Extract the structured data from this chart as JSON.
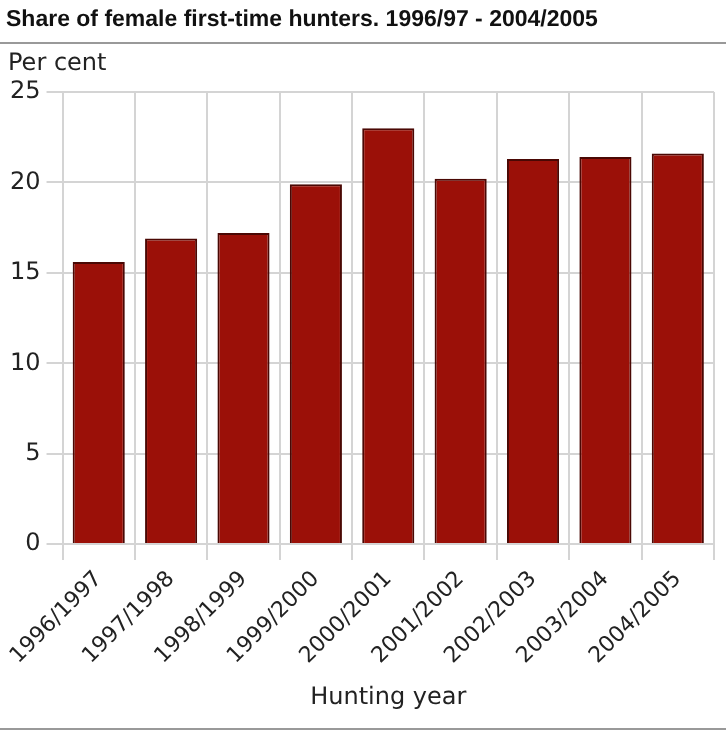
{
  "chart_data": {
    "type": "bar",
    "title": "Share of female first-time hunters. 1996/97 - 2004/2005",
    "ylabel": "Per cent",
    "xlabel": "Hunting year",
    "categories": [
      "1996/1997",
      "1997/1998",
      "1998/1999",
      "1999/2000",
      "2000/2001",
      "2001/2002",
      "2002/2003",
      "2003/2004",
      "2004/2005"
    ],
    "values": [
      15.6,
      16.9,
      17.2,
      19.9,
      23.0,
      20.2,
      21.3,
      21.4,
      21.6
    ],
    "color": "#9b1008",
    "ylim": [
      0,
      25
    ],
    "yticks": [
      0,
      5,
      10,
      15,
      20,
      25
    ],
    "grid": true,
    "legend": false
  }
}
